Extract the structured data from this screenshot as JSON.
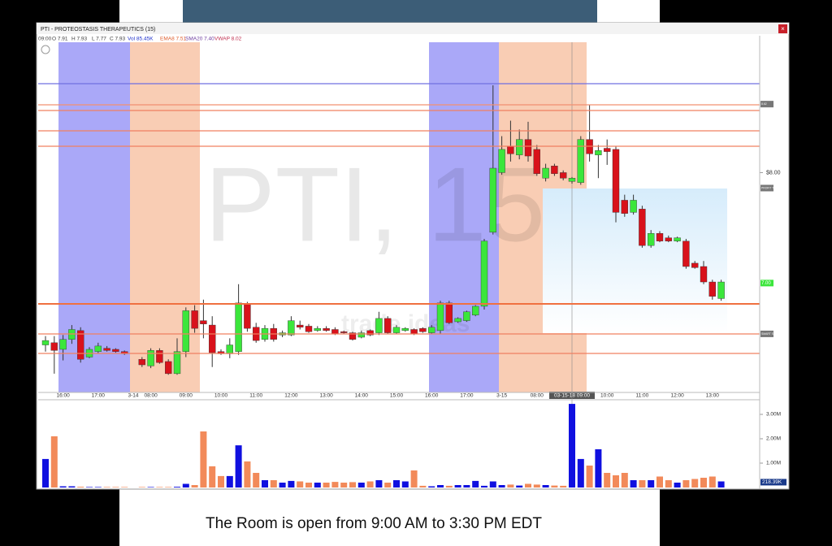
{
  "window": {
    "title": "PTI - PROTEOSTASIS THERAPEUTICS (15)",
    "legend": [
      "09:00",
      "O 7.91",
      "H 7.93",
      "L 7.77",
      "C 7.93",
      "Vol 85.45K",
      "EMA8 7.51",
      "SMA20 7.40",
      "VWAP 8.02"
    ],
    "watermark_brand": "trade ideas"
  },
  "caption": "The Room is open from 9:00 AM to 3:30 PM EDT",
  "chart_data": {
    "type": "candlestick",
    "watermark": "PTI, 15",
    "categories": [
      null,
      null,
      "16:00",
      null,
      null,
      null,
      "17:00",
      null,
      null,
      null,
      "3-14",
      null,
      "08:00",
      null,
      null,
      null,
      "09:00",
      null,
      null,
      null,
      "10:00",
      null,
      null,
      null,
      "11:00",
      null,
      null,
      null,
      "12:00",
      null,
      null,
      null,
      "13:00",
      null,
      null,
      null,
      "14:00",
      null,
      null,
      null,
      "15:00",
      null,
      null,
      null,
      "16:00",
      null,
      null,
      null,
      "17:00",
      null,
      null,
      null,
      "3-15",
      null,
      null,
      null,
      "08:00",
      null,
      null,
      null,
      "03-15-18 09:00",
      null,
      null,
      null,
      "10:00",
      null,
      null,
      null,
      "11:00",
      null,
      null,
      null,
      "12:00",
      null,
      null,
      null,
      "13:00",
      null
    ],
    "open": [
      6.44,
      6.46,
      6.4,
      6.49,
      6.57,
      6.33,
      6.38,
      6.41,
      6.4,
      6.38,
      null,
      6.31,
      6.25,
      6.39,
      6.29,
      6.18,
      6.38,
      6.75,
      6.66,
      6.62,
      6.38,
      6.36,
      6.38,
      6.81,
      6.6,
      6.49,
      6.59,
      6.53,
      6.53,
      6.62,
      6.61,
      6.57,
      6.59,
      6.58,
      6.56,
      6.55,
      6.51,
      6.57,
      6.55,
      6.68,
      6.55,
      6.57,
      6.58,
      6.59,
      6.55,
      6.57,
      6.82,
      6.65,
      6.66,
      6.71,
      6.79,
      7.46,
      8.0,
      8.24,
      8.16,
      8.3,
      8.21,
      7.95,
      8.06,
      8.0,
      7.92,
      7.91,
      8.3,
      8.16,
      8.22,
      8.21,
      7.75,
      7.64,
      7.67,
      7.34,
      7.45,
      7.41,
      7.38,
      7.38,
      7.18,
      7.15,
      7.01,
      6.86
    ],
    "high": [
      6.52,
      6.52,
      6.53,
      6.62,
      6.6,
      6.42,
      6.46,
      6.43,
      6.41,
      6.39,
      null,
      6.33,
      6.41,
      6.41,
      6.31,
      6.5,
      6.78,
      6.8,
      6.85,
      6.7,
      6.4,
      6.5,
      6.99,
      6.83,
      6.64,
      6.62,
      6.63,
      6.57,
      6.7,
      6.66,
      6.63,
      6.61,
      6.61,
      6.6,
      6.57,
      6.56,
      6.57,
      6.58,
      6.74,
      6.7,
      6.62,
      6.6,
      6.59,
      6.6,
      6.62,
      6.84,
      6.84,
      6.69,
      6.75,
      6.8,
      7.4,
      8.79,
      8.33,
      8.47,
      8.39,
      8.46,
      8.25,
      8.08,
      8.08,
      8.02,
      7.96,
      8.33,
      8.61,
      8.25,
      8.3,
      8.24,
      7.8,
      7.8,
      7.7,
      7.48,
      7.47,
      7.43,
      7.42,
      7.4,
      7.2,
      7.2,
      7.03,
      7.03
    ],
    "low": [
      6.38,
      6.18,
      6.3,
      6.45,
      6.28,
      6.32,
      6.36,
      6.38,
      6.37,
      6.35,
      null,
      6.24,
      6.23,
      6.27,
      6.17,
      6.17,
      6.33,
      6.55,
      6.5,
      6.24,
      6.35,
      6.32,
      6.35,
      6.56,
      6.46,
      6.47,
      6.47,
      6.51,
      6.52,
      6.58,
      6.55,
      6.56,
      6.56,
      6.53,
      6.54,
      6.48,
      6.5,
      6.52,
      6.53,
      6.54,
      6.54,
      6.56,
      6.53,
      6.55,
      6.54,
      6.54,
      6.63,
      6.64,
      6.65,
      6.7,
      6.76,
      7.44,
      7.98,
      8.1,
      8.12,
      8.1,
      7.97,
      7.92,
      7.97,
      7.93,
      7.9,
      7.89,
      8.1,
      7.95,
      8.07,
      7.55,
      7.6,
      7.62,
      7.32,
      7.32,
      7.37,
      7.37,
      7.37,
      7.13,
      7.13,
      6.99,
      6.85,
      6.84
    ],
    "close": [
      6.48,
      6.39,
      6.49,
      6.58,
      6.31,
      6.4,
      6.43,
      6.39,
      6.38,
      6.36,
      null,
      6.26,
      6.39,
      6.28,
      6.18,
      6.38,
      6.75,
      6.59,
      6.63,
      6.37,
      6.36,
      6.44,
      6.82,
      6.59,
      6.48,
      6.59,
      6.49,
      6.55,
      6.66,
      6.6,
      6.56,
      6.59,
      6.57,
      6.54,
      6.55,
      6.49,
      6.55,
      6.53,
      6.68,
      6.55,
      6.6,
      6.59,
      6.54,
      6.56,
      6.6,
      6.82,
      6.64,
      6.68,
      6.74,
      6.79,
      7.38,
      8.04,
      8.21,
      8.17,
      8.3,
      8.15,
      7.99,
      8.04,
      7.99,
      7.95,
      7.95,
      8.3,
      8.17,
      8.2,
      8.19,
      7.64,
      7.63,
      7.75,
      7.34,
      7.45,
      7.38,
      7.38,
      7.41,
      7.15,
      7.14,
      7.01,
      6.88,
      7.01
    ],
    "up_color": "#3be63b",
    "down_color": "#d8121b",
    "ylim": [
      6.01,
      9.18
    ],
    "yticks": [
      {
        "value": 8,
        "label": "$8.00"
      }
    ],
    "price_tags": [
      {
        "value": 8.62,
        "label": "8.62"
      },
      {
        "value": 7.86,
        "label": "PROFIT TGT"
      },
      {
        "value": 7.0,
        "label": "7.00"
      },
      {
        "value": 6.54,
        "label": "SMART STOP"
      }
    ],
    "volume": {
      "values": [
        1.17,
        2.1,
        0.05,
        0.05,
        0.03,
        0.02,
        0.02,
        0.02,
        0.02,
        0.02,
        null,
        0.02,
        0.02,
        0.02,
        0.02,
        0.03,
        0.15,
        0.1,
        2.3,
        0.87,
        0.47,
        0.47,
        1.73,
        1.07,
        0.6,
        0.3,
        0.3,
        0.2,
        0.27,
        0.25,
        0.2,
        0.2,
        0.2,
        0.23,
        0.2,
        0.22,
        0.2,
        0.25,
        0.3,
        0.2,
        0.3,
        0.25,
        0.7,
        0.07,
        0.05,
        0.1,
        0.07,
        0.1,
        0.1,
        0.27,
        0.07,
        0.25,
        0.1,
        0.12,
        0.08,
        0.15,
        0.12,
        0.1,
        0.08,
        0.07,
        3.43,
        1.17,
        0.9,
        1.57,
        0.6,
        0.5,
        0.6,
        0.3,
        0.3,
        0.3,
        0.45,
        0.3,
        0.2,
        0.3,
        0.35,
        0.4,
        0.45,
        0.25
      ],
      "up_color": "#1010e0",
      "down_color": "#f28a5a",
      "ylim": [
        0,
        3.6
      ],
      "yticks": [
        {
          "value": 1,
          "label": "1.00M"
        },
        {
          "value": 2,
          "label": "2.00M"
        },
        {
          "value": 3,
          "label": "3.00M"
        }
      ],
      "tag": {
        "value": 0.21839,
        "label": "218.39K"
      }
    }
  }
}
